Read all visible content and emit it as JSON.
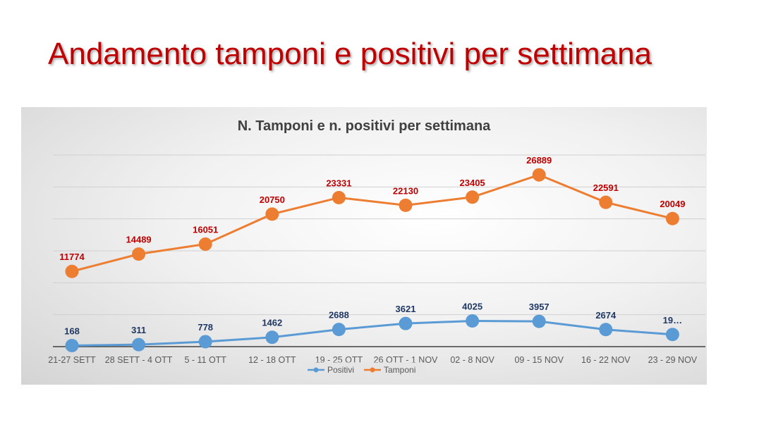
{
  "slide": {
    "title": "Andamento tamponi e positivi per settimana"
  },
  "chart_data": {
    "type": "line",
    "title": "N. Tamponi e n. positivi per settimana",
    "xlabel": "",
    "ylabel": "",
    "ylim": [
      0,
      30000
    ],
    "grid": true,
    "legend": "bottom",
    "categories": [
      "21-27 SETT",
      "28 SETT - 4 OTT",
      "5 - 11 OTT",
      "12 - 18 OTT",
      "19 - 25 OTT",
      "26 OTT - 1 NOV",
      "02 - 8 NOV",
      "09 - 15 NOV",
      "16 - 22 NOV",
      "23 - 29 NOV"
    ],
    "series": [
      {
        "name": "Positivi",
        "color": "#5b9bd5",
        "label_color": "#1f3864",
        "values": [
          168,
          311,
          778,
          1462,
          2688,
          3621,
          4025,
          3957,
          2674,
          1900
        ],
        "labels": [
          "168",
          "311",
          "778",
          "1462",
          "2688",
          "3621",
          "4025",
          "3957",
          "2674",
          "19…"
        ]
      },
      {
        "name": "Tamponi",
        "color": "#ed7d31",
        "label_color": "#c00000",
        "values": [
          11774,
          14489,
          16051,
          20750,
          23331,
          22130,
          23405,
          26889,
          22591,
          20049
        ],
        "labels": [
          "11774",
          "14489",
          "16051",
          "20750",
          "23331",
          "22130",
          "23405",
          "26889",
          "22591",
          "20049"
        ]
      }
    ]
  }
}
